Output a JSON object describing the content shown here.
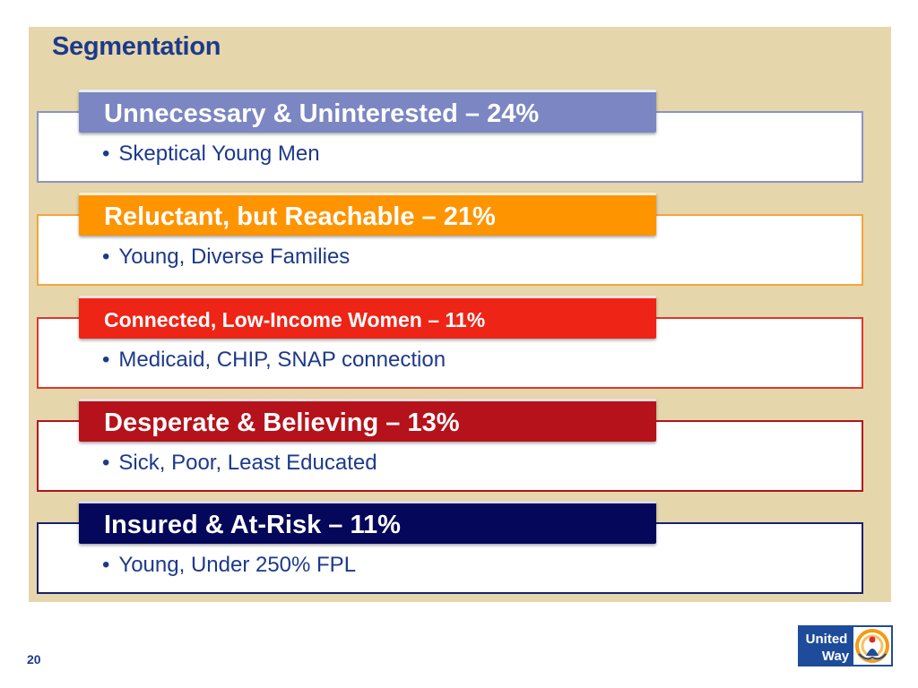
{
  "slide": {
    "title": "Segmentation",
    "page_number": "20"
  },
  "segments": [
    {
      "header": "Unnecessary & Uninterested – 24%",
      "bullet": "Skeptical Young Men",
      "color": "#7b86c2",
      "border": "#8c93c4"
    },
    {
      "header": "Reluctant, but Reachable – 21%",
      "bullet": "Young, Diverse Families",
      "color": "#fe9400",
      "border": "#f5a43a"
    },
    {
      "header": "Connected, Low-Income Women – 11%",
      "bullet": "Medicaid, CHIP, SNAP connection",
      "color": "#ee2416",
      "border": "#e0372b"
    },
    {
      "header": "Desperate & Believing – 13%",
      "bullet": "Sick, Poor, Least Educated",
      "color": "#b5121b",
      "border": "#b5121b"
    },
    {
      "header": "Insured & At-Risk – 11%",
      "bullet": "Young, Under 250% FPL",
      "color": "#04075a",
      "border": "#1a1f6e"
    }
  ],
  "logo": {
    "line1": "United",
    "line2": "Way",
    "icon": "united-way-hand-rainbow-icon",
    "colors": {
      "blue": "#1e4c9a",
      "orange": "#f39c12",
      "red": "#d3302b"
    }
  },
  "bullet_char": "•"
}
